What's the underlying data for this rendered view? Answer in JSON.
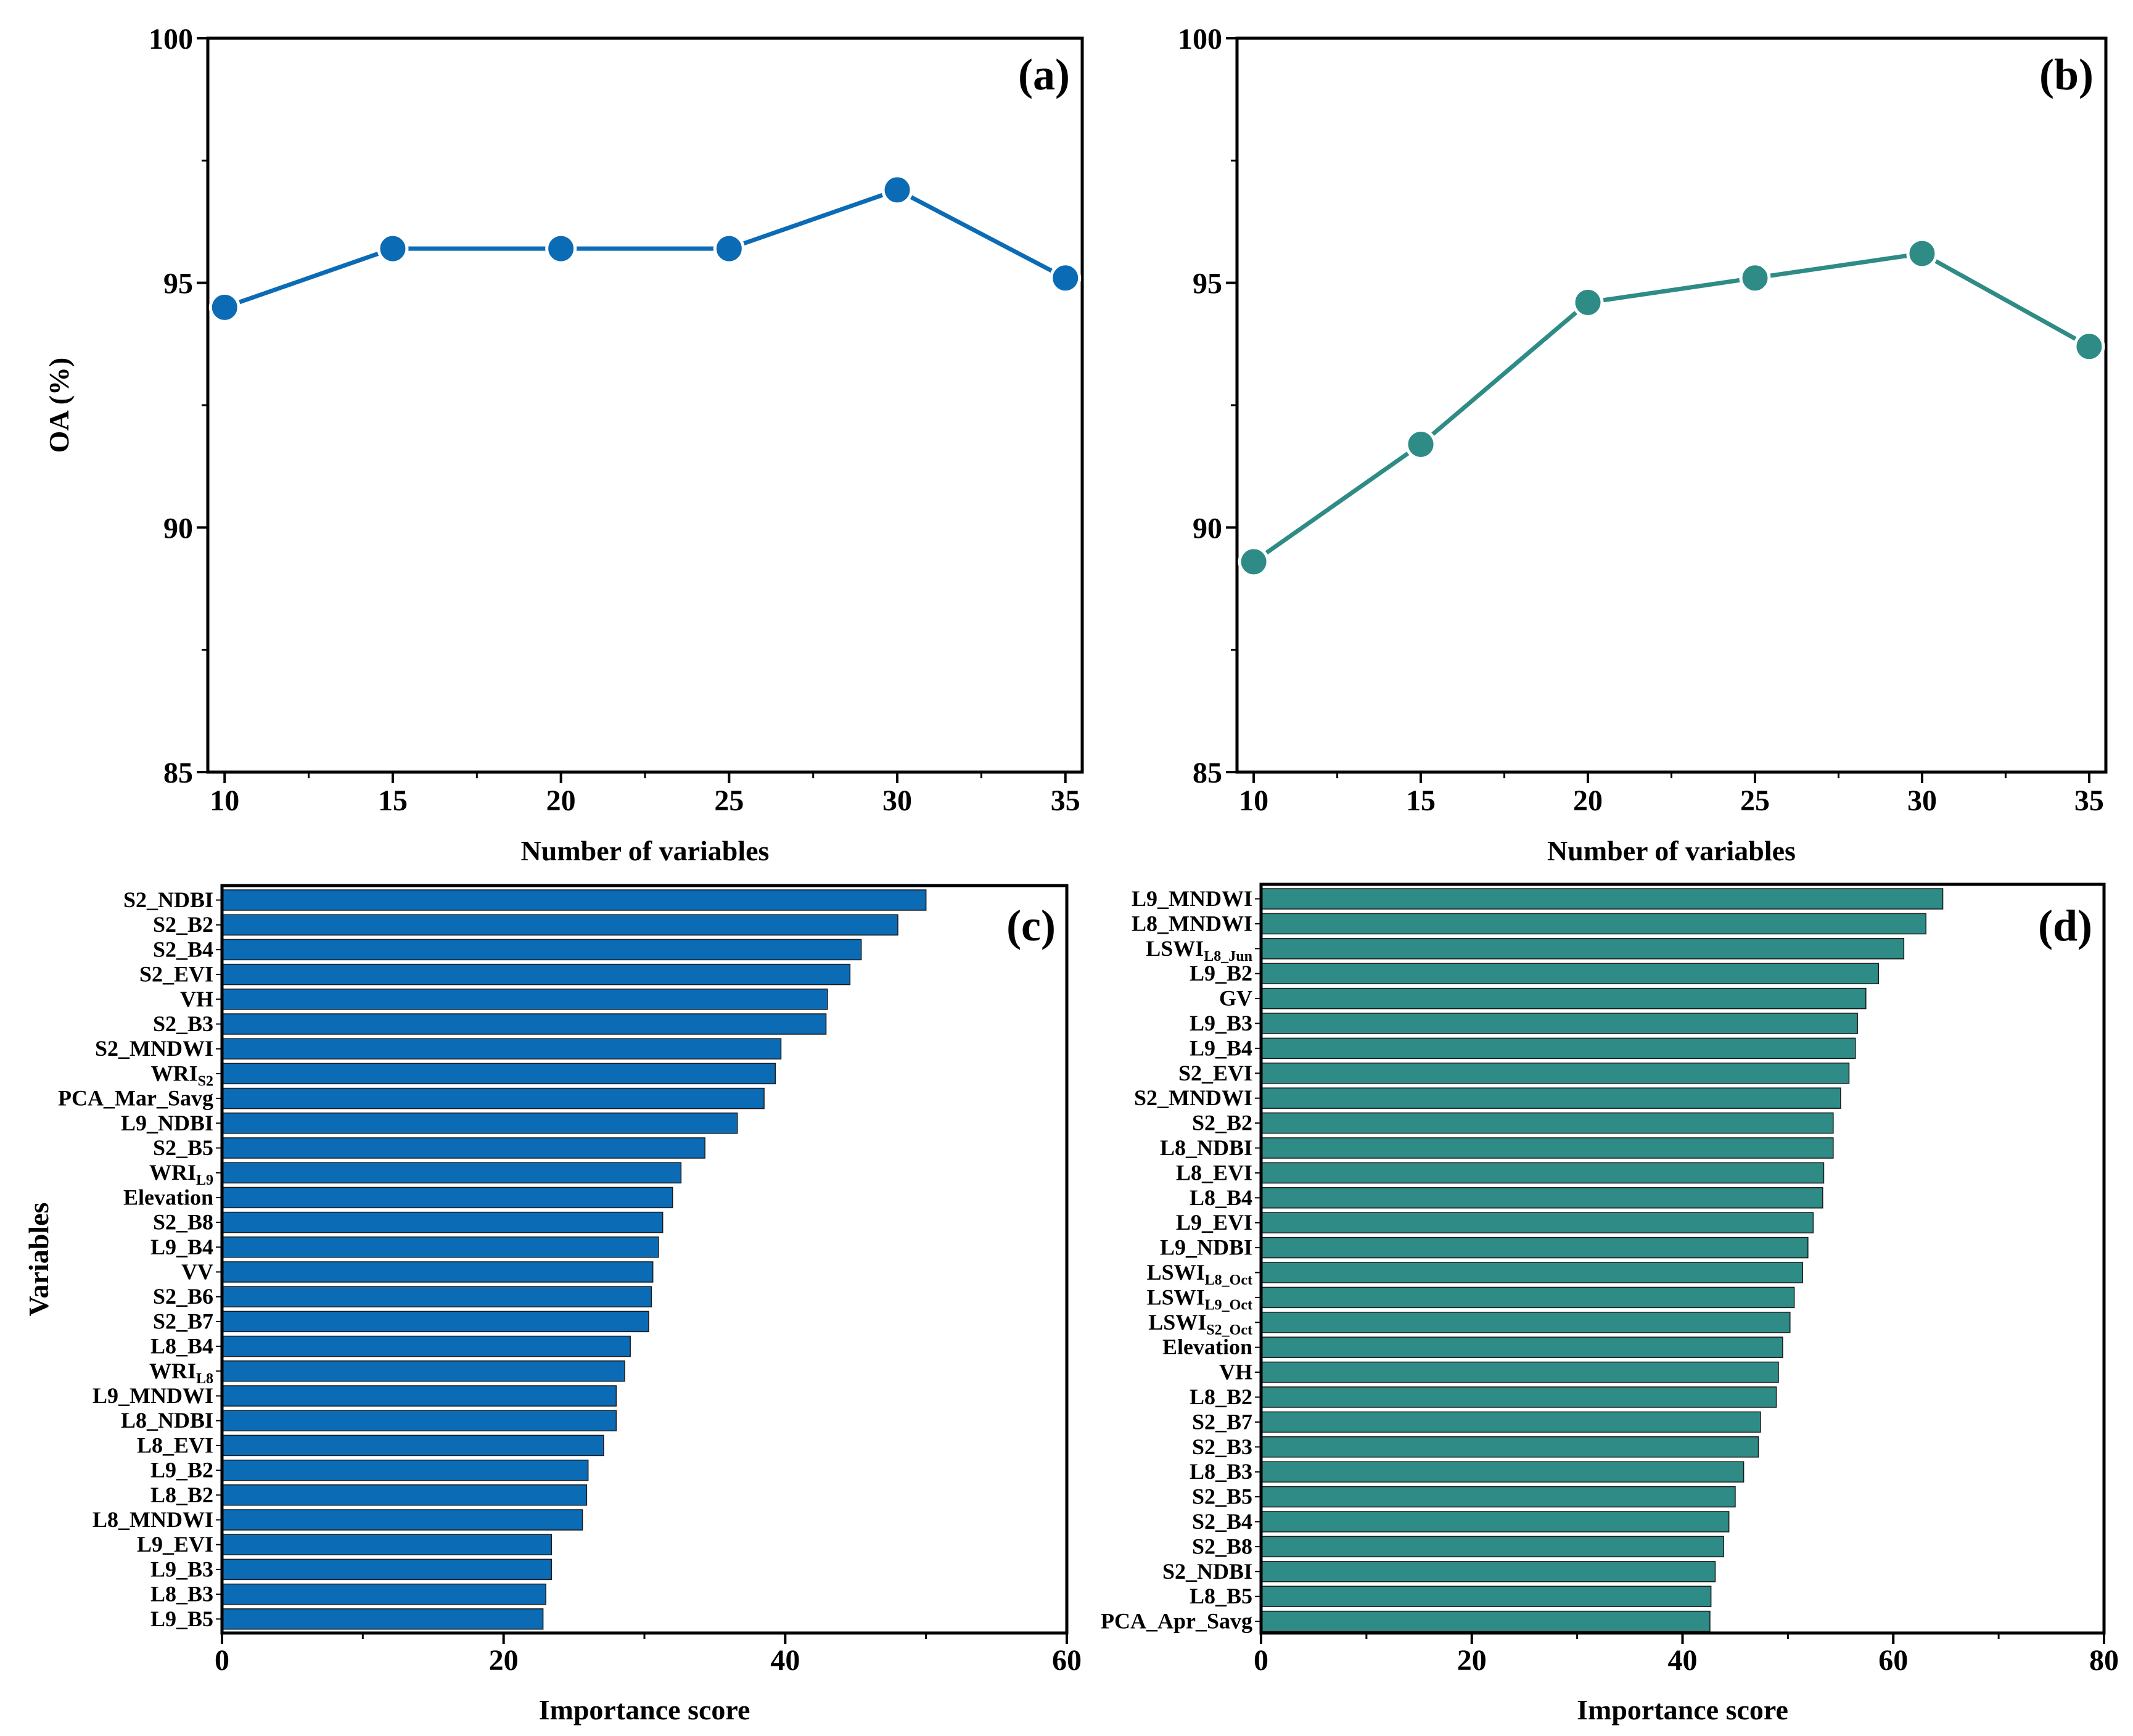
{
  "colors": {
    "blue": "#0B6BB5",
    "teal": "#2E8B85",
    "marker_stroke": "#ffffff",
    "axis": "#000000"
  },
  "chart_data": [
    {
      "id": "a",
      "type": "line",
      "panel_label": "(a)",
      "xlabel": "Number of variables",
      "ylabel": "OA (%)",
      "ylim": [
        85,
        100
      ],
      "xlim": [
        9.5,
        35.5
      ],
      "xticks": [
        "10",
        "15",
        "20",
        "25",
        "30",
        "35"
      ],
      "yticks": [
        "85",
        "90",
        "95",
        "100"
      ],
      "x": [
        10,
        15,
        20,
        25,
        30,
        35
      ],
      "values": [
        94.5,
        95.7,
        95.7,
        95.7,
        96.9,
        95.1
      ],
      "color": "#0B6BB5"
    },
    {
      "id": "b",
      "type": "line",
      "panel_label": "(b)",
      "xlabel": "Number of variables",
      "ylabel": "",
      "ylim": [
        85,
        100
      ],
      "xlim": [
        9.5,
        35.5
      ],
      "xticks": [
        "10",
        "15",
        "20",
        "25",
        "30",
        "35"
      ],
      "yticks": [
        "85",
        "90",
        "95",
        "100"
      ],
      "x": [
        10,
        15,
        20,
        25,
        30,
        35
      ],
      "values": [
        89.3,
        91.7,
        94.6,
        95.1,
        95.6,
        93.7
      ],
      "color": "#2E8B85"
    },
    {
      "id": "c",
      "type": "bar",
      "orientation": "horizontal",
      "panel_label": "(c)",
      "xlabel": "Importance score",
      "ylabel": "Variables",
      "xlim": [
        0,
        60
      ],
      "xticks": [
        "0",
        "20",
        "40",
        "60"
      ],
      "color": "#0B6BB5",
      "categories": [
        {
          "main": "S2_NDBI"
        },
        {
          "main": "S2_B2"
        },
        {
          "main": "S2_B4"
        },
        {
          "main": "S2_EVI"
        },
        {
          "main": "VH"
        },
        {
          "main": "S2_B3"
        },
        {
          "main": "S2_MNDWI"
        },
        {
          "main": "WRI",
          "sub": "S2"
        },
        {
          "main": "PCA_Mar_Savg"
        },
        {
          "main": "L9_NDBI"
        },
        {
          "main": "S2_B5"
        },
        {
          "main": "WRI",
          "sub": "L9"
        },
        {
          "main": "Elevation"
        },
        {
          "main": "S2_B8"
        },
        {
          "main": "L9_B4"
        },
        {
          "main": "VV"
        },
        {
          "main": "S2_B6"
        },
        {
          "main": "S2_B7"
        },
        {
          "main": "L8_B4"
        },
        {
          "main": "WRI",
          "sub": "L8"
        },
        {
          "main": "L9_MNDWI"
        },
        {
          "main": "L8_NDBI"
        },
        {
          "main": "L8_EVI"
        },
        {
          "main": "L9_B2"
        },
        {
          "main": "L8_B2"
        },
        {
          "main": "L8_MNDWI"
        },
        {
          "main": "L9_EVI"
        },
        {
          "main": "L9_B3"
        },
        {
          "main": "L8_B3"
        },
        {
          "main": "L9_B5"
        }
      ],
      "values": [
        50.0,
        48.0,
        45.4,
        44.6,
        43.0,
        42.9,
        39.7,
        39.3,
        38.5,
        36.6,
        34.3,
        32.6,
        32.0,
        31.3,
        31.0,
        30.6,
        30.5,
        30.3,
        29.0,
        28.6,
        28.0,
        28.0,
        27.1,
        26.0,
        25.9,
        25.6,
        23.4,
        23.4,
        23.0,
        22.8
      ]
    },
    {
      "id": "d",
      "type": "bar",
      "orientation": "horizontal",
      "panel_label": "(d)",
      "xlabel": "Importance score",
      "ylabel": "",
      "xlim": [
        0,
        80
      ],
      "xticks": [
        "0",
        "20",
        "40",
        "60",
        "80"
      ],
      "color": "#2E8B85",
      "categories": [
        {
          "main": "L9_MNDWI"
        },
        {
          "main": "L8_MNDWI"
        },
        {
          "main": "LSWI",
          "sub": "L8_Jun"
        },
        {
          "main": "L9_B2"
        },
        {
          "main": "GV"
        },
        {
          "main": "L9_B3"
        },
        {
          "main": "L9_B4"
        },
        {
          "main": "S2_EVI"
        },
        {
          "main": "S2_MNDWI"
        },
        {
          "main": "S2_B2"
        },
        {
          "main": "L8_NDBI"
        },
        {
          "main": "L8_EVI"
        },
        {
          "main": "L8_B4"
        },
        {
          "main": "L9_EVI"
        },
        {
          "main": "L9_NDBI"
        },
        {
          "main": "LSWI",
          "sub": "L8_Oct"
        },
        {
          "main": "LSWI",
          "sub": "L9_Oct"
        },
        {
          "main": "LSWI",
          "sub": "S2_Oct"
        },
        {
          "main": "Elevation"
        },
        {
          "main": "VH"
        },
        {
          "main": "L8_B2"
        },
        {
          "main": "S2_B7"
        },
        {
          "main": "S2_B3"
        },
        {
          "main": "L8_B3"
        },
        {
          "main": "S2_B5"
        },
        {
          "main": "S2_B4"
        },
        {
          "main": "S2_B8"
        },
        {
          "main": "S2_NDBI"
        },
        {
          "main": "L8_B5"
        },
        {
          "main": "PCA_Apr_Savg"
        }
      ],
      "values": [
        64.7,
        63.1,
        61.0,
        58.6,
        57.4,
        56.6,
        56.4,
        55.8,
        55.0,
        54.3,
        54.3,
        53.4,
        53.3,
        52.4,
        51.9,
        51.4,
        50.6,
        50.2,
        49.5,
        49.1,
        48.9,
        47.4,
        47.2,
        45.8,
        45.0,
        44.4,
        43.9,
        43.1,
        42.7,
        42.6
      ]
    }
  ]
}
